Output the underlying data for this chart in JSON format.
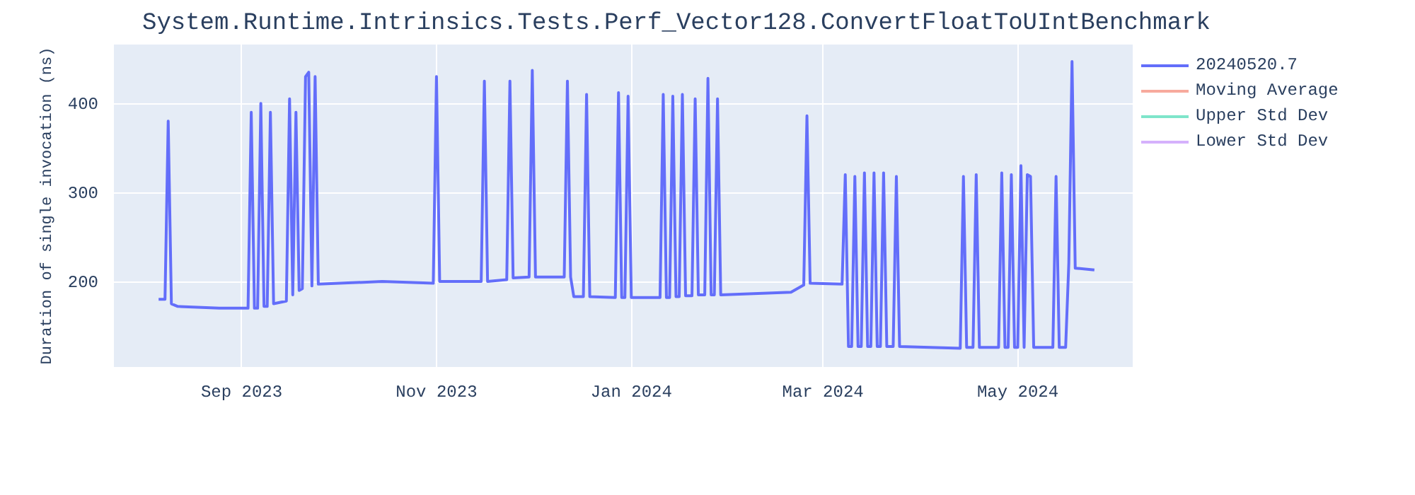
{
  "chart_data": {
    "type": "line",
    "title": "System.Runtime.Intrinsics.Tests.Perf_Vector128.ConvertFloatToUIntBenchmark",
    "ylabel": "Duration of single invocation (ns)",
    "x": [
      "2023-08-06",
      "2023-08-08",
      "2023-08-09",
      "2023-08-10",
      "2023-08-12",
      "2023-08-25",
      "2023-09-03",
      "2023-09-04",
      "2023-09-05",
      "2023-09-06",
      "2023-09-07",
      "2023-09-08",
      "2023-09-09",
      "2023-09-10",
      "2023-09-11",
      "2023-09-15",
      "2023-09-16",
      "2023-09-17",
      "2023-09-18",
      "2023-09-19",
      "2023-09-20",
      "2023-09-21",
      "2023-09-22",
      "2023-09-23",
      "2023-09-24",
      "2023-09-25",
      "2023-10-15",
      "2023-10-31",
      "2023-11-01",
      "2023-11-02",
      "2023-11-15",
      "2023-11-16",
      "2023-11-17",
      "2023-11-23",
      "2023-11-24",
      "2023-11-25",
      "2023-11-30",
      "2023-12-01",
      "2023-12-02",
      "2023-12-11",
      "2023-12-12",
      "2023-12-13",
      "2023-12-14",
      "2023-12-17",
      "2023-12-18",
      "2023-12-19",
      "2023-12-27",
      "2023-12-28",
      "2023-12-29",
      "2023-12-30",
      "2023-12-31",
      "2024-01-01",
      "2024-01-10",
      "2024-01-11",
      "2024-01-12",
      "2024-01-13",
      "2024-01-14",
      "2024-01-15",
      "2024-01-16",
      "2024-01-17",
      "2024-01-18",
      "2024-01-20",
      "2024-01-21",
      "2024-01-22",
      "2024-01-24",
      "2024-01-25",
      "2024-01-26",
      "2024-01-27",
      "2024-01-28",
      "2024-01-29",
      "2024-02-20",
      "2024-02-24",
      "2024-02-25",
      "2024-02-26",
      "2024-03-07",
      "2024-03-08",
      "2024-03-09",
      "2024-03-10",
      "2024-03-11",
      "2024-03-12",
      "2024-03-13",
      "2024-03-14",
      "2024-03-15",
      "2024-03-16",
      "2024-03-17",
      "2024-03-18",
      "2024-03-19",
      "2024-03-20",
      "2024-03-21",
      "2024-03-23",
      "2024-03-24",
      "2024-03-25",
      "2024-04-13",
      "2024-04-14",
      "2024-04-15",
      "2024-04-17",
      "2024-04-18",
      "2024-04-19",
      "2024-04-25",
      "2024-04-26",
      "2024-04-27",
      "2024-04-28",
      "2024-04-29",
      "2024-04-30",
      "2024-05-01",
      "2024-05-02",
      "2024-05-03",
      "2024-05-04",
      "2024-05-05",
      "2024-05-06",
      "2024-05-12",
      "2024-05-13",
      "2024-05-14",
      "2024-05-16",
      "2024-05-17",
      "2024-05-18",
      "2024-05-19",
      "2024-05-25"
    ],
    "series": [
      {
        "name": "20240520.7",
        "color": "#636efa",
        "values": [
          180,
          180,
          380,
          175,
          172,
          170,
          170,
          390,
          170,
          170,
          400,
          172,
          172,
          390,
          175,
          178,
          405,
          185,
          390,
          190,
          192,
          430,
          435,
          195,
          430,
          197,
          200,
          198,
          430,
          200,
          200,
          425,
          200,
          202,
          425,
          204,
          205,
          437,
          205,
          205,
          425,
          205,
          183,
          183,
          410,
          183,
          182,
          412,
          182,
          182,
          408,
          182,
          182,
          410,
          182,
          182,
          408,
          183,
          183,
          410,
          184,
          184,
          405,
          185,
          185,
          428,
          185,
          185,
          405,
          185,
          188,
          196,
          386,
          198,
          197,
          320,
          127,
          127,
          318,
          127,
          127,
          322,
          127,
          127,
          322,
          127,
          127,
          322,
          127,
          127,
          318,
          127,
          125,
          318,
          126,
          126,
          320,
          126,
          126,
          322,
          126,
          126,
          320,
          126,
          126,
          330,
          126,
          320,
          318,
          126,
          126,
          318,
          126,
          126,
          221,
          447,
          215,
          213
        ]
      },
      {
        "name": "Moving Average",
        "color": "#ef553b",
        "values": [
          null,
          null,
          null,
          null,
          null,
          null,
          null,
          null,
          null,
          null,
          null,
          null,
          null,
          null,
          null,
          null,
          null,
          null,
          null,
          null,
          null,
          null,
          null,
          null,
          null,
          null,
          null,
          null,
          null,
          null,
          null,
          null,
          null,
          null,
          null,
          null,
          null,
          null,
          null,
          null,
          null,
          null,
          null,
          null,
          null,
          null,
          null,
          null,
          null,
          null,
          null,
          null,
          null,
          null,
          null,
          null,
          null,
          null,
          null,
          null,
          null,
          null,
          null,
          null,
          null,
          null,
          null,
          null,
          null,
          null,
          null,
          null,
          null,
          null,
          null,
          null,
          null,
          null,
          null,
          null,
          null,
          null,
          null,
          null,
          null,
          null,
          null,
          null,
          null,
          null,
          null,
          null,
          null,
          null,
          null,
          null,
          null,
          null,
          null,
          null,
          null,
          null,
          null,
          null,
          null,
          null,
          null,
          null,
          null,
          null,
          null,
          null,
          null,
          null,
          null,
          null,
          null,
          null
        ]
      },
      {
        "name": "Upper Std Dev",
        "color": "#00cc96",
        "values": [
          null,
          null,
          null,
          null,
          null,
          null,
          null,
          null,
          null,
          null,
          null,
          null,
          null,
          null,
          null,
          null,
          null,
          null,
          null,
          null,
          null,
          null,
          null,
          null,
          null,
          null,
          null,
          null,
          null,
          null,
          null,
          null,
          null,
          null,
          null,
          null,
          null,
          null,
          null,
          null,
          null,
          null,
          null,
          null,
          null,
          null,
          null,
          null,
          null,
          null,
          null,
          null,
          null,
          null,
          null,
          null,
          null,
          null,
          null,
          null,
          null,
          null,
          null,
          null,
          null,
          null,
          null,
          null,
          null,
          null,
          null,
          null,
          null,
          null,
          null,
          null,
          null,
          null,
          null,
          null,
          null,
          null,
          null,
          null,
          null,
          null,
          null,
          null,
          null,
          null,
          null,
          null,
          null,
          null,
          null,
          null,
          null,
          null,
          null,
          null,
          null,
          null,
          null,
          null,
          null,
          null,
          null,
          null,
          null,
          null,
          null,
          null,
          null,
          null,
          null,
          null,
          null,
          null
        ]
      },
      {
        "name": "Lower Std Dev",
        "color": "#ab63fa",
        "values": [
          null,
          null,
          null,
          null,
          null,
          null,
          null,
          null,
          null,
          null,
          null,
          null,
          null,
          null,
          null,
          null,
          null,
          null,
          null,
          null,
          null,
          null,
          null,
          null,
          null,
          null,
          null,
          null,
          null,
          null,
          null,
          null,
          null,
          null,
          null,
          null,
          null,
          null,
          null,
          null,
          null,
          null,
          null,
          null,
          null,
          null,
          null,
          null,
          null,
          null,
          null,
          null,
          null,
          null,
          null,
          null,
          null,
          null,
          null,
          null,
          null,
          null,
          null,
          null,
          null,
          null,
          null,
          null,
          null,
          null,
          null,
          null,
          null,
          null,
          null,
          null,
          null,
          null,
          null,
          null,
          null,
          null,
          null,
          null,
          null,
          null,
          null,
          null,
          null,
          null,
          null,
          null,
          null,
          null,
          null,
          null,
          null,
          null,
          null,
          null,
          null,
          null,
          null,
          null,
          null,
          null,
          null,
          null,
          null,
          null,
          null,
          null,
          null,
          null,
          null,
          null,
          null,
          null
        ]
      }
    ],
    "xlim": [
      "2023-07-23",
      "2024-06-06"
    ],
    "xticks": [
      {
        "value": "2023-09-01",
        "label": "Sep 2023"
      },
      {
        "value": "2023-11-01",
        "label": "Nov 2023"
      },
      {
        "value": "2024-01-01",
        "label": "Jan 2024"
      },
      {
        "value": "2024-03-01",
        "label": "Mar 2024"
      },
      {
        "value": "2024-05-01",
        "label": "May 2024"
      }
    ],
    "ylim": [
      104,
      466
    ],
    "yticks": [
      200,
      300,
      400
    ],
    "grid": true,
    "legend": "right",
    "line_style": "solid"
  }
}
